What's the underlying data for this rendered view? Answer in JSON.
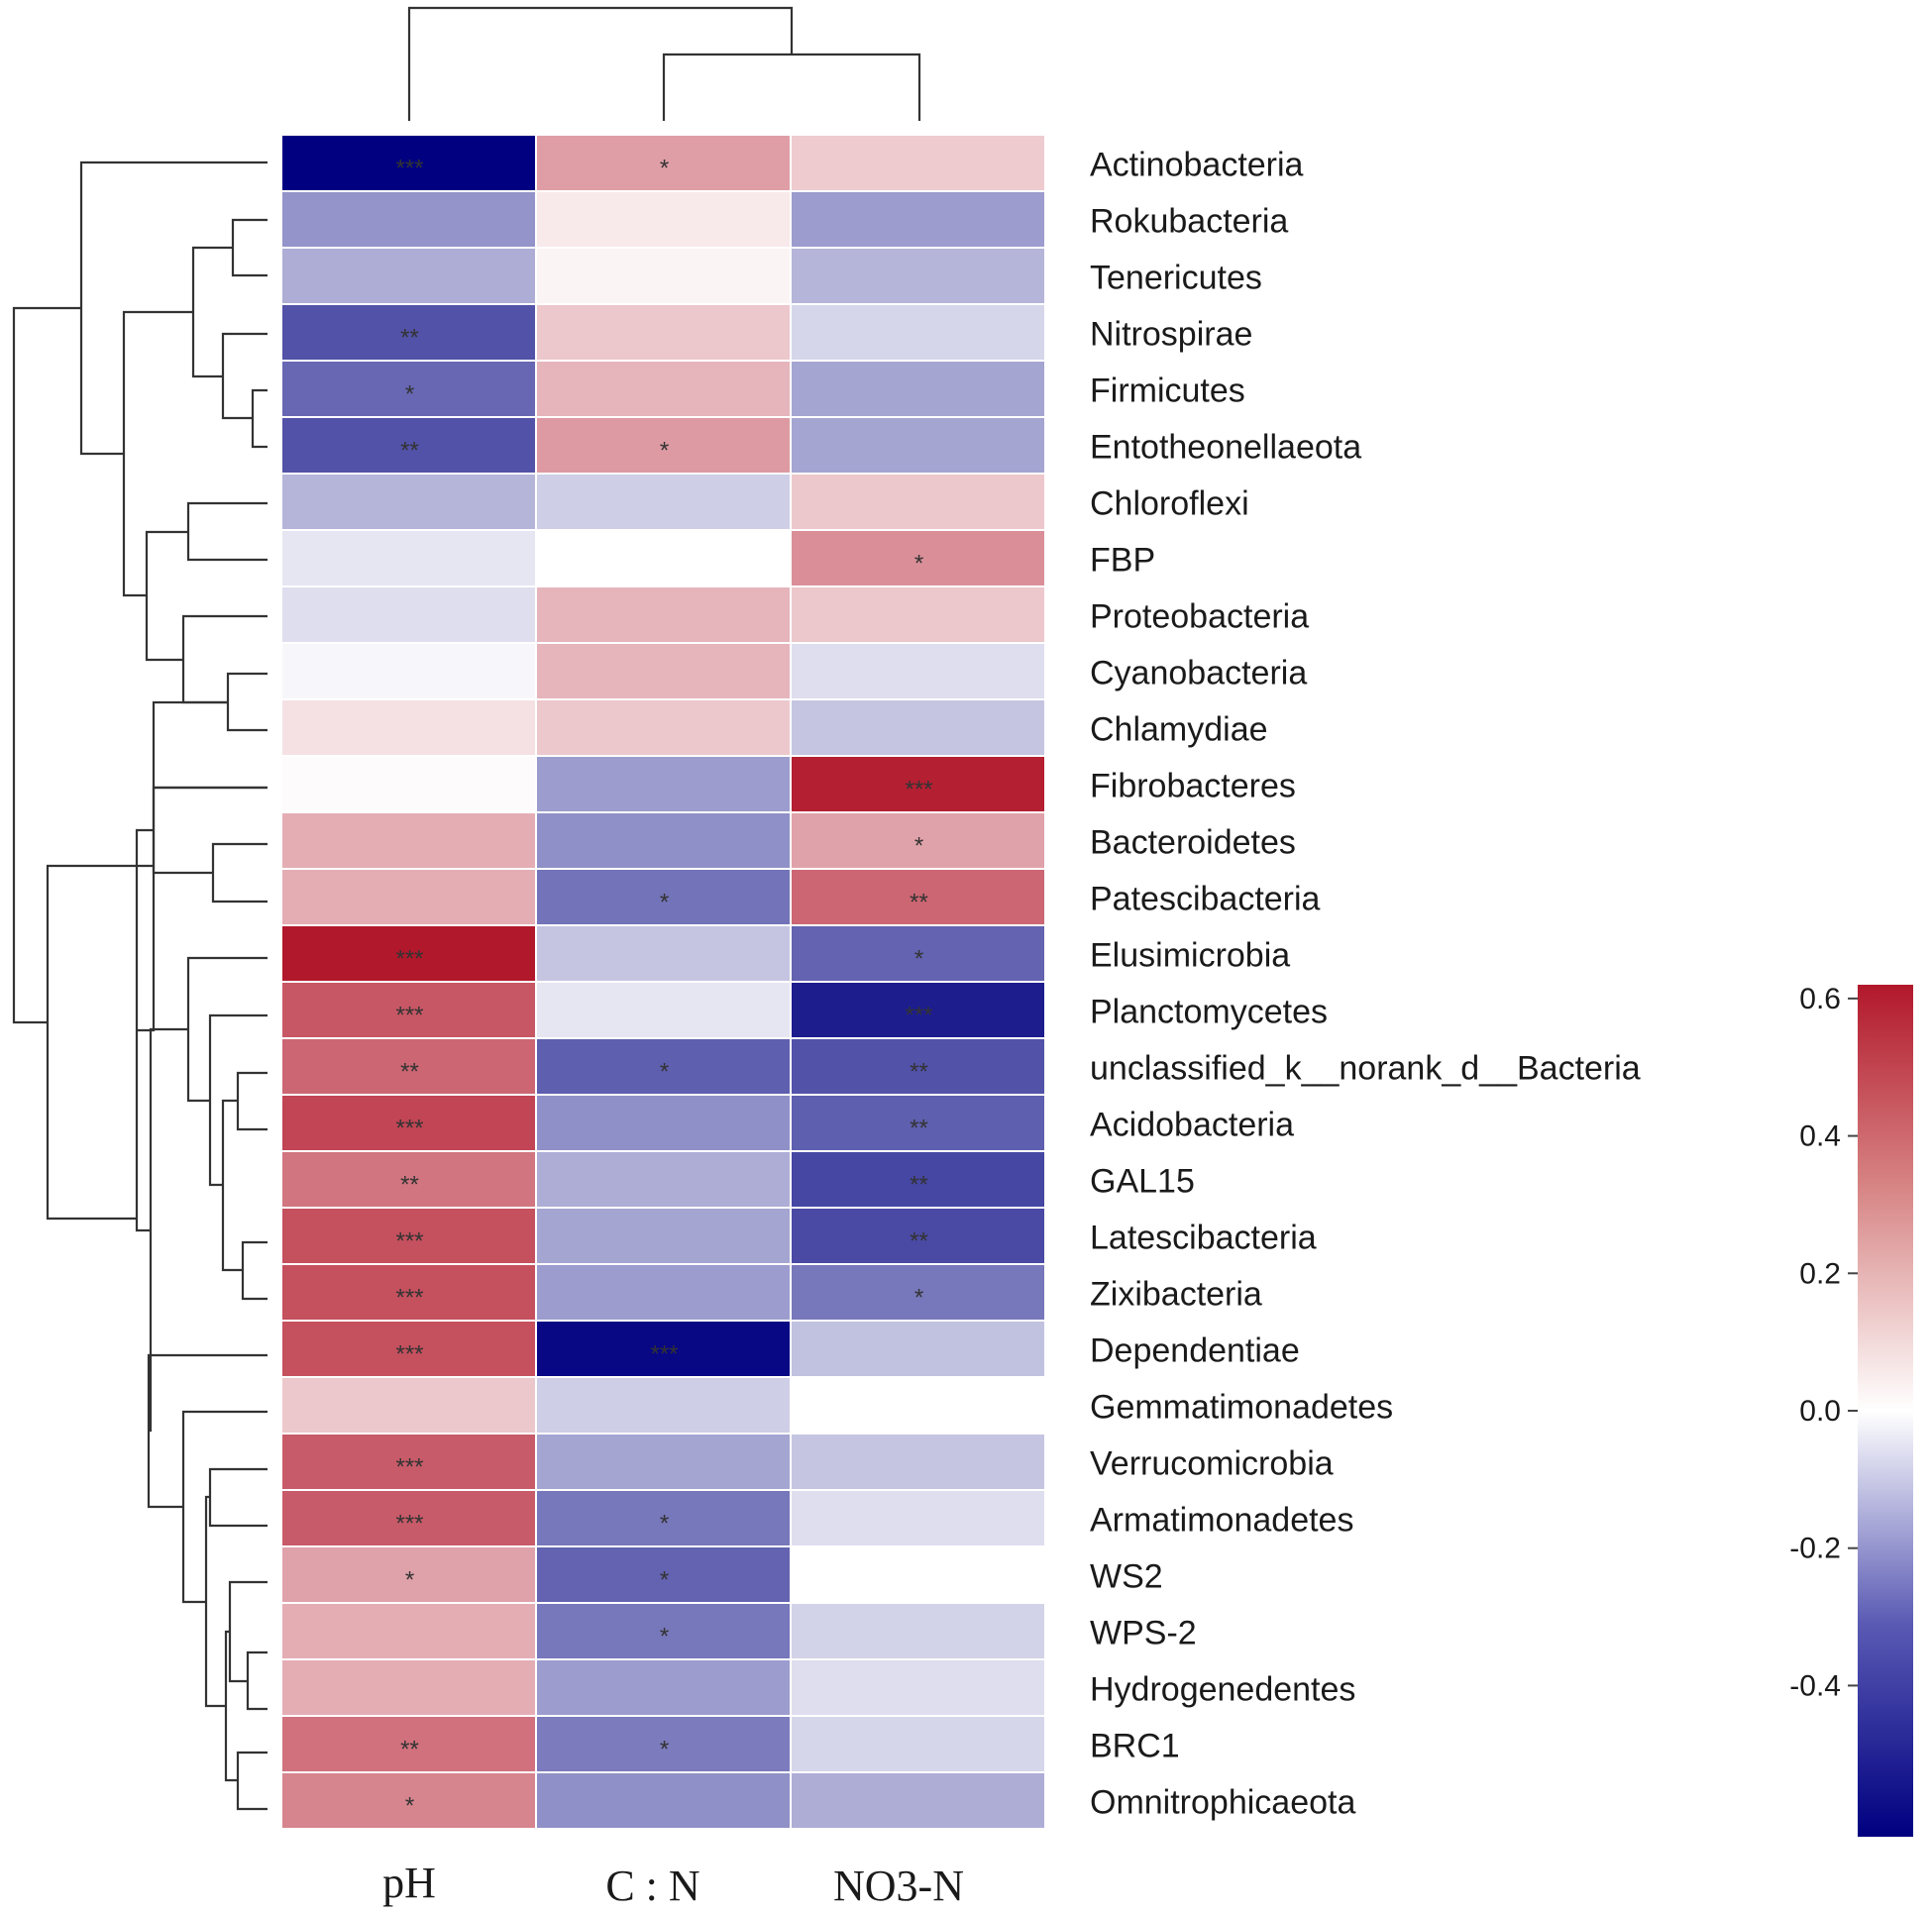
{
  "chart_data": {
    "type": "heatmap",
    "title": "",
    "columns": [
      "pH",
      "C : N",
      "NO3-N"
    ],
    "rows": [
      "Actinobacteria",
      "Rokubacteria",
      "Tenericutes",
      "Nitrospirae",
      "Firmicutes",
      "Entotheonellaeota",
      "Chloroflexi",
      "FBP",
      "Proteobacteria",
      "Cyanobacteria",
      "Chlamydiae",
      "Fibrobacteres",
      "Bacteroidetes",
      "Patescibacteria",
      "Elusimicrobia",
      "Planctomycetes",
      "unclassified_k__norank_d__Bacteria",
      "Acidobacteria",
      "GAL15",
      "Latescibacteria",
      "Zixibacteria",
      "Dependentiae",
      "Gemmatimonadetes",
      "Verrucomicrobia",
      "Armatimonadetes",
      "WS2",
      "WPS-2",
      "Hydrogenedentes",
      "BRC1",
      "Omnitrophicaeota"
    ],
    "values": [
      [
        -0.62,
        0.26,
        0.14
      ],
      [
        -0.26,
        0.06,
        -0.24
      ],
      [
        -0.2,
        0.03,
        -0.18
      ],
      [
        -0.42,
        0.15,
        -0.1
      ],
      [
        -0.37,
        0.2,
        -0.22
      ],
      [
        -0.42,
        0.27,
        -0.22
      ],
      [
        -0.18,
        -0.12,
        0.15
      ],
      [
        -0.06,
        0.0,
        0.3
      ],
      [
        -0.08,
        0.2,
        0.15
      ],
      [
        -0.02,
        0.2,
        -0.08
      ],
      [
        0.08,
        0.15,
        -0.14
      ],
      [
        0.01,
        -0.24,
        0.6
      ],
      [
        0.22,
        -0.27,
        0.25
      ],
      [
        0.22,
        -0.34,
        0.41
      ],
      [
        0.62,
        -0.14,
        -0.38
      ],
      [
        0.45,
        -0.06,
        -0.55
      ],
      [
        0.41,
        -0.39,
        -0.42
      ],
      [
        0.5,
        -0.27,
        -0.39
      ],
      [
        0.37,
        -0.2,
        -0.45
      ],
      [
        0.47,
        -0.22,
        -0.44
      ],
      [
        0.47,
        -0.24,
        -0.33
      ],
      [
        0.47,
        -0.6,
        -0.15
      ],
      [
        0.15,
        -0.12,
        0.0
      ],
      [
        0.44,
        -0.22,
        -0.14
      ],
      [
        0.44,
        -0.33,
        -0.08
      ],
      [
        0.25,
        -0.38,
        0.0
      ],
      [
        0.22,
        -0.33,
        -0.11
      ],
      [
        0.22,
        -0.24,
        -0.08
      ],
      [
        0.38,
        -0.32,
        -0.1
      ],
      [
        0.33,
        -0.27,
        -0.2
      ]
    ],
    "significance": [
      [
        "***",
        "*",
        ""
      ],
      [
        "",
        "",
        ""
      ],
      [
        "",
        "",
        ""
      ],
      [
        "**",
        "",
        ""
      ],
      [
        "*",
        "",
        ""
      ],
      [
        "**",
        "*",
        ""
      ],
      [
        "",
        "",
        ""
      ],
      [
        "",
        "",
        "*"
      ],
      [
        "",
        "",
        ""
      ],
      [
        "",
        "",
        ""
      ],
      [
        "",
        "",
        ""
      ],
      [
        "",
        "",
        "***"
      ],
      [
        "",
        "",
        "*"
      ],
      [
        "",
        "*",
        "**"
      ],
      [
        "***",
        "",
        "*"
      ],
      [
        "***",
        "",
        "***"
      ],
      [
        "**",
        "*",
        "**"
      ],
      [
        "***",
        "",
        "**"
      ],
      [
        "**",
        "",
        "**"
      ],
      [
        "***",
        "",
        "**"
      ],
      [
        "***",
        "",
        "*"
      ],
      [
        "***",
        "***",
        ""
      ],
      [
        "",
        "",
        ""
      ],
      [
        "***",
        "",
        ""
      ],
      [
        "***",
        "*",
        ""
      ],
      [
        "*",
        "*",
        ""
      ],
      [
        "",
        "*",
        ""
      ],
      [
        "",
        "",
        ""
      ],
      [
        "**",
        "*",
        ""
      ],
      [
        "*",
        "",
        ""
      ]
    ],
    "colorbar": {
      "min": -0.62,
      "max": 0.62,
      "ticks": [
        0.6,
        0.4,
        0.2,
        0.0,
        -0.2,
        -0.4
      ],
      "tick_labels": [
        "0.6",
        "0.4",
        "0.2",
        "0.0",
        "-0.2",
        "-0.4"
      ],
      "low_color": "#000080",
      "mid_color": "#ffffff",
      "high_color": "#b2182b"
    },
    "legend_placement": "right"
  }
}
